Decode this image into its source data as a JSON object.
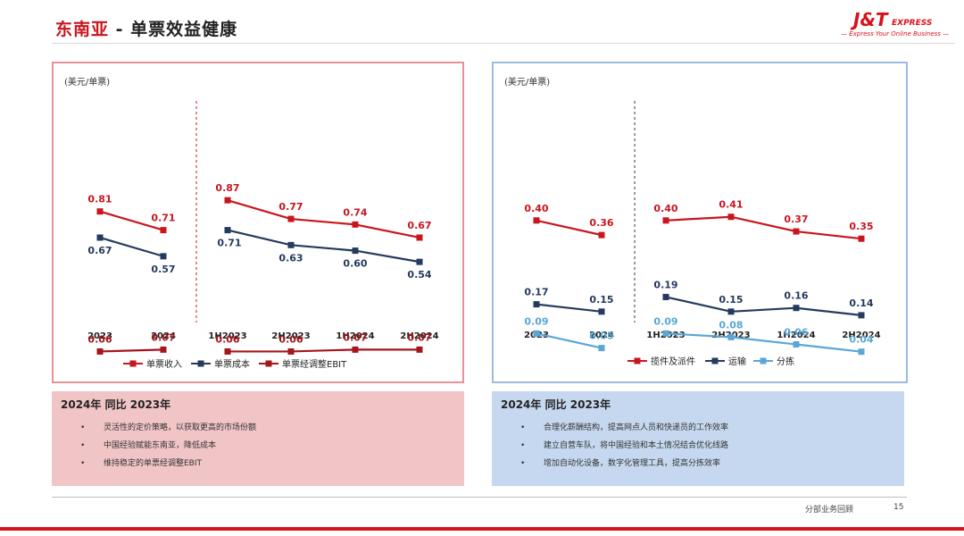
{
  "page": {
    "title_region": "东南亚",
    "title_rest": "- 单票效益健康",
    "logo": {
      "mark": "J&T",
      "sub": "EXPRESS",
      "tagline": "— Express Your Online Business —"
    },
    "footer_text": "分部业务回顾",
    "page_number": "15"
  },
  "colors": {
    "red": "#c8161d",
    "navy": "#243a5e",
    "darkred": "#a4161a",
    "lightblue": "#5aa6d6",
    "left_border": "#e89196",
    "right_border": "#9dbbe0"
  },
  "chart_data": [
    {
      "type": "line",
      "unit_label": "(美元/单票)",
      "groups": [
        {
          "categories": [
            "2023",
            "2024"
          ]
        },
        {
          "categories": [
            "1H2023",
            "2H2023",
            "1H2024",
            "2H2024"
          ]
        }
      ],
      "series": [
        {
          "name": "单票收入",
          "color": "#c8161d",
          "values": [
            0.81,
            0.71,
            0.87,
            0.77,
            0.74,
            0.67
          ],
          "labels": [
            "0.81",
            "0.71",
            "0.87",
            "0.77",
            "0.74",
            "0.67"
          ]
        },
        {
          "name": "单票成本",
          "color": "#243a5e",
          "values": [
            0.67,
            0.57,
            0.71,
            0.63,
            0.6,
            0.54
          ],
          "labels": [
            "0.67",
            "0.57",
            "0.71",
            "0.63",
            "0.60",
            "0.54"
          ]
        },
        {
          "name": "单票经调整EBIT",
          "color": "#a4161a",
          "values": [
            0.06,
            0.07,
            0.06,
            0.06,
            0.07,
            0.07
          ],
          "labels": [
            "0.06",
            "0.07",
            "0.06",
            "0.06",
            "0.07",
            "0.07"
          ]
        }
      ]
    },
    {
      "type": "line",
      "unit_label": "(美元/单票)",
      "groups": [
        {
          "categories": [
            "2023",
            "2024"
          ]
        },
        {
          "categories": [
            "1H2023",
            "2H2023",
            "1H2024",
            "2H2024"
          ]
        }
      ],
      "series": [
        {
          "name": "揽件及派件",
          "color": "#c8161d",
          "values": [
            0.4,
            0.36,
            0.4,
            0.41,
            0.37,
            0.35
          ],
          "labels": [
            "0.40",
            "0.36",
            "0.40",
            "0.41",
            "0.37",
            "0.35"
          ]
        },
        {
          "name": "运输",
          "color": "#243a5e",
          "values": [
            0.17,
            0.15,
            0.19,
            0.15,
            0.16,
            0.14
          ],
          "labels": [
            "0.17",
            "0.15",
            "0.19",
            "0.15",
            "0.16",
            "0.14"
          ]
        },
        {
          "name": "分拣",
          "color": "#5aa6d6",
          "values": [
            0.09,
            0.05,
            0.09,
            0.08,
            0.06,
            0.04
          ],
          "labels": [
            "0.09",
            "0.05",
            "0.09",
            "0.08",
            "0.06",
            "0.04"
          ]
        }
      ]
    }
  ],
  "boxes": {
    "left": {
      "heading": "2024年 同比 2023年",
      "bullets": [
        "灵活性的定价策略，以获取更高的市场份额",
        "中国经验赋能东南亚，降低成本",
        "维持稳定的单票经调整EBIT"
      ]
    },
    "right": {
      "heading": "2024年 同比 2023年",
      "bullets": [
        "合理化薪酬结构，提高网点人员和快递员的工作效率",
        "建立自营车队，将中国经验和本土情况结合优化线路",
        "增加自动化设备，数字化管理工具，提高分拣效率"
      ]
    }
  }
}
